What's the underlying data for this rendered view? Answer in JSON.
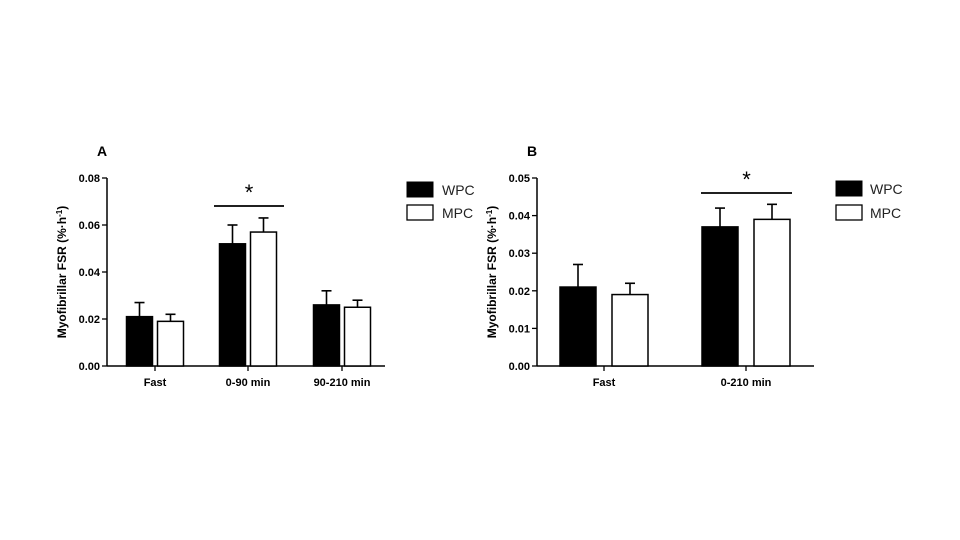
{
  "chart_data": [
    {
      "panel": "A",
      "type": "bar",
      "ylabel": "Myofibrillar FSR (%·h",
      "ylabel_superscript": "-1",
      "ylabel_close": ")",
      "ylim": [
        0,
        0.08
      ],
      "yticks": [
        "0.00",
        "0.02",
        "0.04",
        "0.06",
        "0.08"
      ],
      "categories": [
        "Fast",
        "0-90 min",
        "90-210 min"
      ],
      "series": [
        {
          "name": "WPC",
          "color": "#000000",
          "values": [
            0.021,
            0.052,
            0.026
          ],
          "errors": [
            0.006,
            0.008,
            0.006
          ]
        },
        {
          "name": "MPC",
          "color": "#ffffff",
          "values": [
            0.019,
            0.057,
            0.025
          ],
          "errors": [
            0.003,
            0.006,
            0.003
          ]
        }
      ],
      "annotations": [
        {
          "text": "*",
          "category_index": 1
        }
      ],
      "legend_position": "right",
      "grid": false
    },
    {
      "panel": "B",
      "type": "bar",
      "ylabel": "Myofibrillar FSR (%·h",
      "ylabel_superscript": "-1",
      "ylabel_close": ")",
      "ylim": [
        0,
        0.05
      ],
      "yticks": [
        "0.00",
        "0.01",
        "0.02",
        "0.03",
        "0.04",
        "0.05"
      ],
      "categories": [
        "Fast",
        "0-210 min"
      ],
      "series": [
        {
          "name": "WPC",
          "color": "#000000",
          "values": [
            0.021,
            0.037
          ],
          "errors": [
            0.006,
            0.005
          ]
        },
        {
          "name": "MPC",
          "color": "#ffffff",
          "values": [
            0.019,
            0.039
          ],
          "errors": [
            0.003,
            0.004
          ]
        }
      ],
      "annotations": [
        {
          "text": "*",
          "category_index": 1
        }
      ],
      "legend_position": "right",
      "grid": false
    }
  ]
}
